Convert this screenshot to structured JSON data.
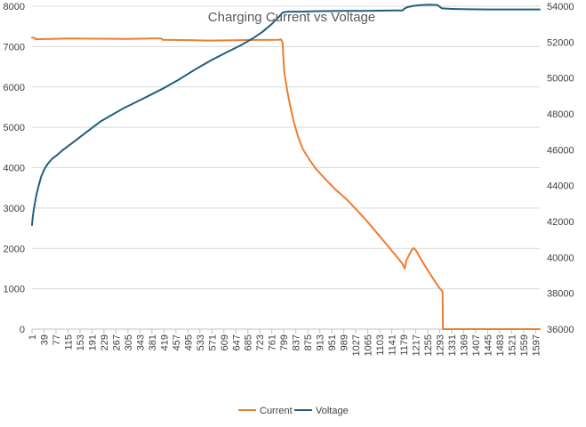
{
  "chart_data": {
    "type": "line",
    "title": "Charging Current vs Voltage",
    "xlabel": "",
    "ylabel": "",
    "y2label": "",
    "x_tick_labels": [
      "1",
      "39",
      "77",
      "115",
      "153",
      "191",
      "229",
      "267",
      "305",
      "343",
      "381",
      "419",
      "457",
      "495",
      "533",
      "571",
      "609",
      "647",
      "685",
      "723",
      "761",
      "799",
      "837",
      "875",
      "913",
      "951",
      "989",
      "1027",
      "1065",
      "1103",
      "1141",
      "1179",
      "1217",
      "1255",
      "1293",
      "1331",
      "1369",
      "1407",
      "1445",
      "1483",
      "1521",
      "1559",
      "1597"
    ],
    "x_range": [
      1,
      1610
    ],
    "ylim": [
      0,
      8000
    ],
    "y_ticks": [
      0,
      1000,
      2000,
      3000,
      4000,
      5000,
      6000,
      7000,
      8000
    ],
    "y2lim": [
      36000,
      54000
    ],
    "y2_ticks": [
      36000,
      38000,
      40000,
      42000,
      44000,
      46000,
      48000,
      50000,
      52000,
      54000
    ],
    "grid": true,
    "legend_position": "bottom",
    "series": [
      {
        "name": "Current",
        "axis": "left",
        "color": "#ED7D31",
        "points": [
          [
            1,
            7220
          ],
          [
            10,
            7215
          ],
          [
            12,
            7180
          ],
          [
            20,
            7185
          ],
          [
            60,
            7190
          ],
          [
            120,
            7200
          ],
          [
            200,
            7195
          ],
          [
            300,
            7190
          ],
          [
            380,
            7200
          ],
          [
            410,
            7205
          ],
          [
            415,
            7170
          ],
          [
            500,
            7160
          ],
          [
            560,
            7150
          ],
          [
            640,
            7155
          ],
          [
            700,
            7165
          ],
          [
            780,
            7170
          ],
          [
            790,
            7175
          ],
          [
            795,
            7100
          ],
          [
            800,
            6400
          ],
          [
            810,
            5900
          ],
          [
            820,
            5500
          ],
          [
            830,
            5150
          ],
          [
            845,
            4750
          ],
          [
            860,
            4450
          ],
          [
            880,
            4200
          ],
          [
            900,
            3980
          ],
          [
            930,
            3720
          ],
          [
            960,
            3480
          ],
          [
            1000,
            3200
          ],
          [
            1030,
            2950
          ],
          [
            1060,
            2700
          ],
          [
            1090,
            2420
          ],
          [
            1120,
            2140
          ],
          [
            1150,
            1860
          ],
          [
            1175,
            1620
          ],
          [
            1182,
            1500
          ],
          [
            1187,
            1700
          ],
          [
            1195,
            1820
          ],
          [
            1205,
            1970
          ],
          [
            1210,
            2010
          ],
          [
            1218,
            1950
          ],
          [
            1230,
            1780
          ],
          [
            1250,
            1520
          ],
          [
            1270,
            1280
          ],
          [
            1290,
            1040
          ],
          [
            1300,
            950
          ],
          [
            1302,
            920
          ],
          [
            1303,
            0
          ],
          [
            1340,
            0
          ],
          [
            1450,
            0
          ],
          [
            1550,
            0
          ],
          [
            1610,
            0
          ]
        ]
      },
      {
        "name": "Voltage",
        "axis": "right",
        "color": "#1F5F7F",
        "points": [
          [
            1,
            41800
          ],
          [
            3,
            42200
          ],
          [
            6,
            42600
          ],
          [
            10,
            43000
          ],
          [
            15,
            43500
          ],
          [
            22,
            44000
          ],
          [
            30,
            44500
          ],
          [
            40,
            44900
          ],
          [
            50,
            45200
          ],
          [
            65,
            45500
          ],
          [
            80,
            45700
          ],
          [
            100,
            46000
          ],
          [
            130,
            46400
          ],
          [
            160,
            46800
          ],
          [
            190,
            47200
          ],
          [
            220,
            47600
          ],
          [
            250,
            47900
          ],
          [
            290,
            48300
          ],
          [
            330,
            48650
          ],
          [
            370,
            49000
          ],
          [
            420,
            49450
          ],
          [
            470,
            49950
          ],
          [
            520,
            50500
          ],
          [
            570,
            51000
          ],
          [
            620,
            51450
          ],
          [
            660,
            51800
          ],
          [
            700,
            52200
          ],
          [
            730,
            52550
          ],
          [
            760,
            53000
          ],
          [
            780,
            53350
          ],
          [
            795,
            53650
          ],
          [
            810,
            53700
          ],
          [
            850,
            53700
          ],
          [
            900,
            53720
          ],
          [
            950,
            53730
          ],
          [
            1000,
            53740
          ],
          [
            1050,
            53740
          ],
          [
            1100,
            53750
          ],
          [
            1150,
            53760
          ],
          [
            1175,
            53760
          ],
          [
            1180,
            53850
          ],
          [
            1190,
            53950
          ],
          [
            1210,
            54020
          ],
          [
            1230,
            54060
          ],
          [
            1260,
            54090
          ],
          [
            1285,
            54070
          ],
          [
            1295,
            53950
          ],
          [
            1300,
            53880
          ],
          [
            1330,
            53850
          ],
          [
            1380,
            53830
          ],
          [
            1450,
            53820
          ],
          [
            1530,
            53820
          ],
          [
            1610,
            53820
          ]
        ]
      }
    ]
  }
}
